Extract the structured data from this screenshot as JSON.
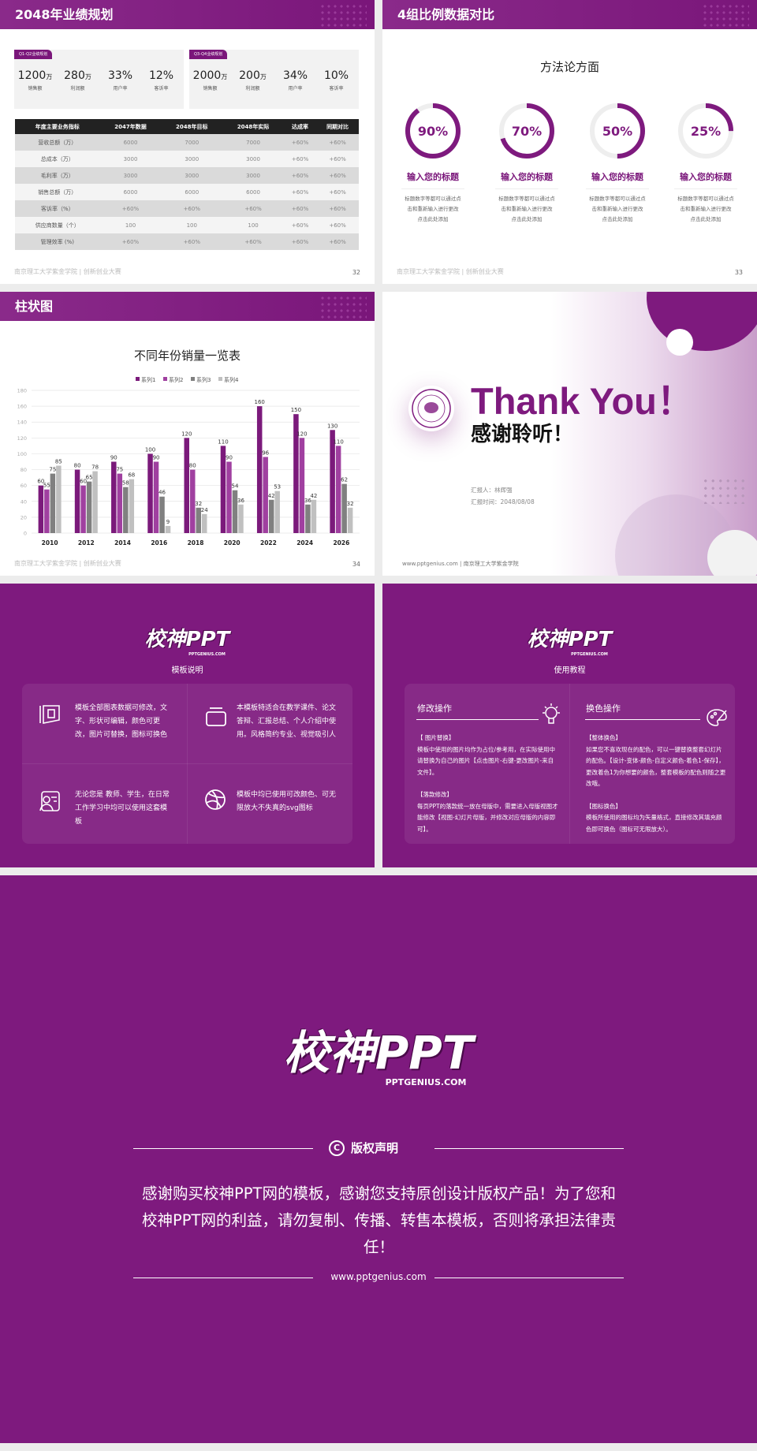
{
  "slide1": {
    "title": "2048年业绩规划",
    "cards": [
      {
        "tag": "Q1-Q2业绩规划",
        "stats": [
          {
            "value": "1200",
            "unit": "万",
            "label": "销售额"
          },
          {
            "value": "280",
            "unit": "万",
            "label": "利润额"
          },
          {
            "value": "33%",
            "unit": "",
            "label": "用户率"
          },
          {
            "value": "12%",
            "unit": "",
            "label": "客诉率"
          }
        ]
      },
      {
        "tag": "Q3-Q4业绩规划",
        "stats": [
          {
            "value": "2000",
            "unit": "万",
            "label": "销售额"
          },
          {
            "value": "200",
            "unit": "万",
            "label": "利润额"
          },
          {
            "value": "34%",
            "unit": "",
            "label": "用户率"
          },
          {
            "value": "10%",
            "unit": "",
            "label": "客诉率"
          }
        ]
      }
    ],
    "table": {
      "headers": [
        "年度主要业务指标",
        "2047年数据",
        "2048年目标",
        "2048年实际",
        "达成率",
        "同期对比"
      ],
      "rows": [
        [
          "营收总额（万）",
          "6000",
          "7000",
          "7000",
          "+60%",
          "+60%"
        ],
        [
          "总成本（万）",
          "3000",
          "3000",
          "3000",
          "+60%",
          "+60%"
        ],
        [
          "毛利率（万）",
          "3000",
          "3000",
          "3000",
          "+60%",
          "+60%"
        ],
        [
          "销售总额（万）",
          "6000",
          "6000",
          "6000",
          "+60%",
          "+60%"
        ],
        [
          "客诉率（%）",
          "+60%",
          "+60%",
          "+60%",
          "+60%",
          "+60%"
        ],
        [
          "供应商数量（个）",
          "100",
          "100",
          "100",
          "+60%",
          "+60%"
        ],
        [
          "管理效率 (%)",
          "+60%",
          "+60%",
          "+60%",
          "+60%",
          "+60%"
        ]
      ]
    },
    "footer": "南京理工大学紫金学院 | 创新创业大赛",
    "page": "32"
  },
  "slide2": {
    "title": "4组比例数据对比",
    "subtitle": "方法论方面",
    "items": [
      {
        "percent": 90,
        "label": "90%",
        "title": "输入您的标题",
        "desc": [
          "标题数字等都可以通过点",
          "击和重新输入进行更改",
          "点击此处添加"
        ]
      },
      {
        "percent": 70,
        "label": "70%",
        "title": "输入您的标题",
        "desc": [
          "标题数字等都可以通过点",
          "击和重新输入进行更改",
          "点击此处添加"
        ]
      },
      {
        "percent": 50,
        "label": "50%",
        "title": "输入您的标题",
        "desc": [
          "标题数字等都可以通过点",
          "击和重新输入进行更改",
          "点击此处添加"
        ]
      },
      {
        "percent": 25,
        "label": "25%",
        "title": "输入您的标题",
        "desc": [
          "标题数字等都可以通过点",
          "击和重新输入进行更改",
          "点击此处添加"
        ]
      }
    ],
    "footer": "南京理工大学紫金学院 | 创新创业大赛",
    "page": "33"
  },
  "slide3": {
    "title": "柱状图",
    "footer": "南京理工大学紫金学院 | 创新创业大赛",
    "page": "34"
  },
  "chart_data": {
    "type": "bar",
    "title": "不同年份销量一览表",
    "categories": [
      "2010",
      "2012",
      "2014",
      "2016",
      "2018",
      "2020",
      "2022",
      "2024",
      "2026"
    ],
    "series": [
      {
        "name": "系列1",
        "color": "#7b1a7b",
        "values": [
          60,
          80,
          90,
          100,
          120,
          110,
          160,
          150,
          130
        ]
      },
      {
        "name": "系列2",
        "color": "#a040a0",
        "values": [
          55,
          60,
          75,
          90,
          80,
          90,
          96,
          120,
          110
        ]
      },
      {
        "name": "系列3",
        "color": "#808080",
        "values": [
          75,
          65,
          58,
          46,
          32,
          54,
          42,
          36,
          62
        ]
      },
      {
        "name": "系列4",
        "color": "#c0c0c0",
        "values": [
          85,
          78,
          68,
          9,
          24,
          36,
          53,
          42,
          32
        ]
      }
    ],
    "ylim": [
      0,
      180
    ],
    "yticks": [
      0,
      20,
      40,
      60,
      80,
      100,
      120,
      140,
      160,
      180
    ],
    "grid": true,
    "legend": "top",
    "xlabel": "",
    "ylabel": ""
  },
  "slide4": {
    "title": "Thank You！",
    "subtitle": "感谢聆听！",
    "reporter": "汇报人：林辉强",
    "date": "汇报时间：2048/08/08",
    "footer": "www.pptgenius.com | 南京理工大学紫金学院"
  },
  "slide5": {
    "logo": "校神PPT",
    "logo_sub": "PPTGENIUS.COM",
    "heading": "模板说明",
    "items": [
      {
        "icon": "book-icon",
        "text": "模板全部图表数据可修改，文字、形状可编辑，颜色可更改，图片可替换，图标可换色"
      },
      {
        "icon": "window-icon",
        "text": "本模板特适合在教学课件、论文答辩、汇报总结、个人介绍中使用。风格简约专业、视觉吸引人"
      },
      {
        "icon": "user-card-icon",
        "text": "无论您是 教师、学生，在日常工作学习中均可以使用这套模板"
      },
      {
        "icon": "basketball-icon",
        "text": "模板中均已使用可改颜色、可无限放大不失真的svg图标"
      }
    ]
  },
  "slide6": {
    "logo": "校神PPT",
    "logo_sub": "PPTGENIUS.COM",
    "heading": "使用教程",
    "left": {
      "title": "修改操作",
      "icon": "lightbulb-icon",
      "p1_title": "【 图片替换】",
      "p1": "模板中使用的图片均作为占位/参考用，在实际使用中请替换为自己的图片【点击图片-右键-更改图片-来自文件】。",
      "p2_title": "【落款修改】",
      "p2": "每页PPT的落款统一放在母版中，需要进入母版视图才能修改【视图-幻灯片母版，并修改对应母版的内容即可】。"
    },
    "right": {
      "title": "换色操作",
      "icon": "palette-icon",
      "p1_title": "【整体换色】",
      "p1": "如果您不喜欢现在的配色，可以一键替换整套幻灯片的配色。【设计-变体-颜色-自定义颜色-着色1-保存】，更改着色1为你想要的颜色，整套模板的配色则随之更改哦。",
      "p2_title": "【图标换色】",
      "p2": "模板所使用的图标均为矢量格式，直接修改其填充颜色即可换色（图标可无限放大）。"
    }
  },
  "slide7": {
    "logo": "校神PPT",
    "logo_sub": "PPTGENIUS.COM",
    "heading": "版权声明",
    "text": "感谢购买校神PPT网的模板，感谢您支持原创设计版权产品！为了您和校神PPT网的利益，请勿复制、传播、转售本模板，否则将承担法律责任！",
    "url": "www.pptgenius.com"
  },
  "colors": {
    "brand": "#7e1a7e",
    "gray": "#ececec"
  }
}
